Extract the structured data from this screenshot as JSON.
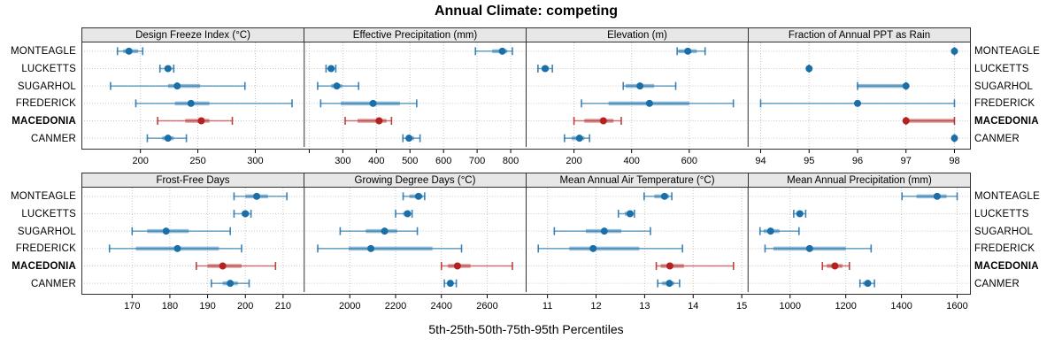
{
  "title": "Annual Climate: competing",
  "footer": "5th-25th-50th-75th-95th Percentiles",
  "percentile_levels": [
    "5th",
    "25th",
    "50th",
    "75th",
    "95th"
  ],
  "locations": [
    {
      "name": "MONTEAGLE",
      "highlight": false
    },
    {
      "name": "LUCKETTS",
      "highlight": false
    },
    {
      "name": "SUGARHOL",
      "highlight": false
    },
    {
      "name": "FREDERICK",
      "highlight": false
    },
    {
      "name": "MACEDONIA",
      "highlight": true
    },
    {
      "name": "CANMER",
      "highlight": false
    }
  ],
  "colors": {
    "normal": "#1b6fa8",
    "highlight": "#b22220",
    "grid": "#c9c9c9",
    "border": "#2f2f2f",
    "header_bg": "#e7e7e7"
  },
  "chart_data": {
    "type": "interval-dot-plot",
    "description": "5th-25th-50th-75th-95th percentile intervals per location; dot = median; MACEDONIA highlighted in red",
    "panels": [
      {
        "title": "Design Freeze Index (°C)",
        "xlim": [
          149.4,
          342.6
        ],
        "ticks": [
          200,
          250,
          300
        ],
        "series": [
          {
            "location": "MONTEAGLE",
            "values": [
              180,
              185,
              190,
              198,
              202
            ]
          },
          {
            "location": "LUCKETTS",
            "values": [
              217,
              221,
              224,
              226,
              229
            ]
          },
          {
            "location": "SUGARHOL",
            "values": [
              174,
              224,
              232,
              252,
              291
            ]
          },
          {
            "location": "FREDERICK",
            "values": [
              196,
              230,
              244,
              260,
              332
            ]
          },
          {
            "location": "MACEDONIA",
            "values": [
              215,
              239,
              253,
              260,
              280
            ]
          },
          {
            "location": "CANMER",
            "values": [
              206,
              219,
              224,
              229,
              240
            ]
          }
        ]
      },
      {
        "title": "Effective Precipitation (mm)",
        "xlim": [
          185,
          846
        ],
        "ticks": [
          300,
          400,
          500,
          600,
          700,
          800
        ],
        "gridlines": [
          200,
          300,
          400,
          500,
          600,
          700,
          800
        ],
        "series": [
          {
            "location": "MONTEAGLE",
            "values": [
              695,
              745,
              775,
              790,
              805
            ]
          },
          {
            "location": "LUCKETTS",
            "values": [
              250,
              258,
              265,
              272,
              279
            ]
          },
          {
            "location": "SUGARHOL",
            "values": [
              225,
              265,
              282,
              298,
              347
            ]
          },
          {
            "location": "FREDERICK",
            "values": [
              234,
              294,
              390,
              470,
              520
            ]
          },
          {
            "location": "MACEDONIA",
            "values": [
              307,
              344,
              408,
              430,
              445
            ]
          },
          {
            "location": "CANMER",
            "values": [
              479,
              488,
              497,
              512,
              530
            ]
          }
        ]
      },
      {
        "title": "Elevation (m)",
        "xlim": [
          34,
          804
        ],
        "ticks": [
          200,
          400,
          600
        ],
        "series": [
          {
            "location": "MONTEAGLE",
            "values": [
              558,
              562,
              595,
              626,
              655
            ]
          },
          {
            "location": "LUCKETTS",
            "values": [
              75,
              88,
              100,
              113,
              125
            ]
          },
          {
            "location": "SUGARHOL",
            "values": [
              371,
              379,
              429,
              478,
              553
            ]
          },
          {
            "location": "FREDERICK",
            "values": [
              226,
              320,
              462,
              600,
              753
            ]
          },
          {
            "location": "MACEDONIA",
            "values": [
              200,
              236,
              302,
              337,
              364
            ]
          },
          {
            "location": "CANMER",
            "values": [
              167,
              192,
              219,
              236,
              254
            ]
          }
        ]
      },
      {
        "title": "Fraction of Annual PPT as Rain",
        "xlim": [
          93.74,
          98.32
        ],
        "ticks": [
          94,
          95,
          96,
          97,
          98
        ],
        "series": [
          {
            "location": "MONTEAGLE",
            "values": [
              98,
              98,
              98,
              98,
              98
            ]
          },
          {
            "location": "LUCKETTS",
            "values": [
              95,
              95,
              95,
              95,
              95
            ]
          },
          {
            "location": "SUGARHOL",
            "values": [
              96,
              96,
              97,
              97,
              97
            ]
          },
          {
            "location": "FREDERICK",
            "values": [
              94,
              96,
              96,
              96,
              98
            ]
          },
          {
            "location": "MACEDONIA",
            "values": [
              97,
              97,
              97,
              98,
              98
            ]
          },
          {
            "location": "CANMER",
            "values": [
              98,
              98,
              98,
              98,
              98
            ]
          }
        ]
      },
      {
        "title": "Frost-Free Days",
        "xlim": [
          156.8,
          215.6
        ],
        "ticks": [
          170,
          180,
          190,
          200,
          210
        ],
        "series": [
          {
            "location": "MONTEAGLE",
            "values": [
              197,
              200,
              203,
              206,
              211
            ]
          },
          {
            "location": "LUCKETTS",
            "values": [
              197,
              199,
              200,
              201,
              201.5
            ]
          },
          {
            "location": "SUGARHOL",
            "values": [
              170,
              174,
              179,
              185,
              196
            ]
          },
          {
            "location": "FREDERICK",
            "values": [
              164,
              171,
              182,
              193,
              199
            ]
          },
          {
            "location": "MACEDONIA",
            "values": [
              187,
              190,
              194,
              199,
              208
            ]
          },
          {
            "location": "CANMER",
            "values": [
              191,
              194,
              196,
              198,
              201
            ]
          }
        ]
      },
      {
        "title": "Growing Degree Days (°C)",
        "xlim": [
          1801,
          2770
        ],
        "ticks": [
          2000,
          2200,
          2400,
          2600
        ],
        "series": [
          {
            "location": "MONTEAGLE",
            "values": [
              2233,
              2260,
              2300,
              2318,
              2327
            ]
          },
          {
            "location": "LUCKETTS",
            "values": [
              2200,
              2233,
              2252,
              2265,
              2272
            ]
          },
          {
            "location": "SUGARHOL",
            "values": [
              1958,
              2070,
              2152,
              2207,
              2295
            ]
          },
          {
            "location": "FREDERICK",
            "values": [
              1860,
              1995,
              2092,
              2361,
              2488
            ]
          },
          {
            "location": "MACEDONIA",
            "values": [
              2400,
              2429,
              2470,
              2527,
              2710
            ]
          },
          {
            "location": "CANMER",
            "values": [
              2413,
              2426,
              2439,
              2452,
              2465
            ]
          }
        ]
      },
      {
        "title": "Mean Annual Air Temperature (°C)",
        "xlim": [
          10.56,
          15.13
        ],
        "ticks": [
          11,
          12,
          13,
          14,
          15
        ],
        "series": [
          {
            "location": "MONTEAGLE",
            "values": [
              12.99,
              13.2,
              13.41,
              13.5,
              13.56
            ]
          },
          {
            "location": "LUCKETTS",
            "values": [
              12.46,
              12.59,
              12.7,
              12.75,
              12.79
            ]
          },
          {
            "location": "SUGARHOL",
            "values": [
              11.14,
              11.79,
              12.17,
              12.52,
              13.12
            ]
          },
          {
            "location": "FREDERICK",
            "values": [
              10.81,
              11.45,
              11.94,
              12.89,
              13.78
            ]
          },
          {
            "location": "MACEDONIA",
            "values": [
              13.24,
              13.33,
              13.52,
              13.81,
              14.83
            ]
          },
          {
            "location": "CANMER",
            "values": [
              13.27,
              13.36,
              13.51,
              13.61,
              13.72
            ]
          }
        ]
      },
      {
        "title": "Mean Annual Precipitation (mm)",
        "xlim": [
          849,
          1646
        ],
        "ticks": [
          1000,
          1200,
          1400,
          1600
        ],
        "series": [
          {
            "location": "MONTEAGLE",
            "values": [
              1402,
              1454,
              1528,
              1562,
              1600
            ]
          },
          {
            "location": "LUCKETTS",
            "values": [
              1013,
              1022,
              1035,
              1046,
              1056
            ]
          },
          {
            "location": "SUGARHOL",
            "values": [
              892,
              905,
              930,
              962,
              1032
            ]
          },
          {
            "location": "FREDERICK",
            "values": [
              910,
              940,
              1070,
              1200,
              1291
            ]
          },
          {
            "location": "MACEDONIA",
            "values": [
              1116,
              1132,
              1161,
              1188,
              1213
            ]
          },
          {
            "location": "CANMER",
            "values": [
              1251,
              1262,
              1279,
              1290,
              1303
            ]
          }
        ]
      }
    ]
  }
}
